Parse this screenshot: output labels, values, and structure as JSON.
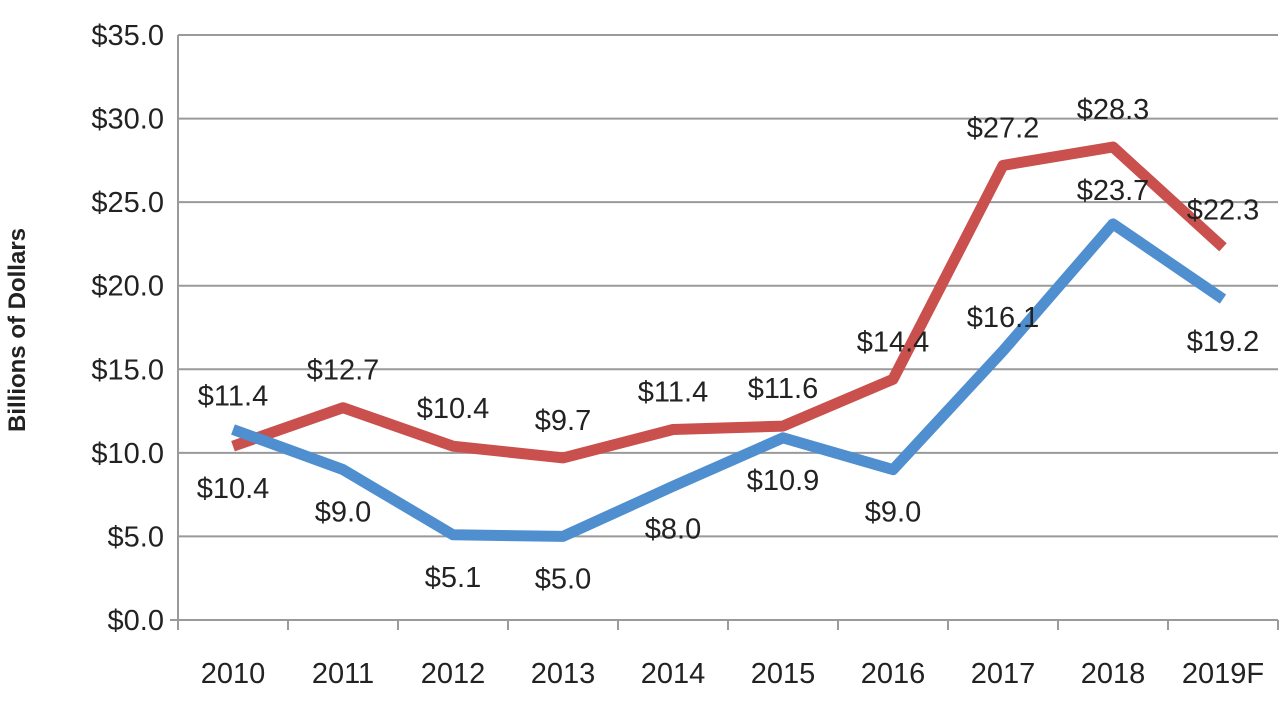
{
  "chart_data": {
    "type": "line",
    "categories": [
      "2010",
      "2011",
      "2012",
      "2013",
      "2014",
      "2015",
      "2016",
      "2017",
      "2018",
      "2019F"
    ],
    "series": [
      {
        "values": [
          10.4,
          12.7,
          10.4,
          9.7,
          11.4,
          11.6,
          14.4,
          27.2,
          28.3,
          22.3
        ],
        "labels": [
          "$10.4",
          "$12.7",
          "$10.4",
          "$9.7",
          "$11.4",
          "$11.6",
          "$14.4",
          "$27.2",
          "$28.3",
          "$22.3"
        ],
        "color": "#c9504d"
      },
      {
        "values": [
          11.4,
          9.0,
          5.1,
          5.0,
          8.0,
          10.9,
          9.0,
          16.1,
          23.7,
          19.2
        ],
        "labels": [
          "$11.4",
          "$9.0",
          "$5.1",
          "$5.0",
          "$8.0",
          "$10.9",
          "$9.0",
          "$16.1",
          "$23.7",
          "$19.2"
        ],
        "color": "#4f8fd0"
      }
    ],
    "title": "",
    "xlabel": "",
    "ylabel": "Billions of Dollars",
    "ylim": [
      0,
      35
    ],
    "yticks": [
      0,
      5,
      10,
      15,
      20,
      25,
      30,
      35
    ],
    "ytick_labels": [
      "$0.0",
      "$5.0",
      "$10.0",
      "$15.0",
      "$20.0",
      "$25.0",
      "$30.0",
      "$35.0"
    ],
    "grid": true,
    "legend": "none"
  }
}
